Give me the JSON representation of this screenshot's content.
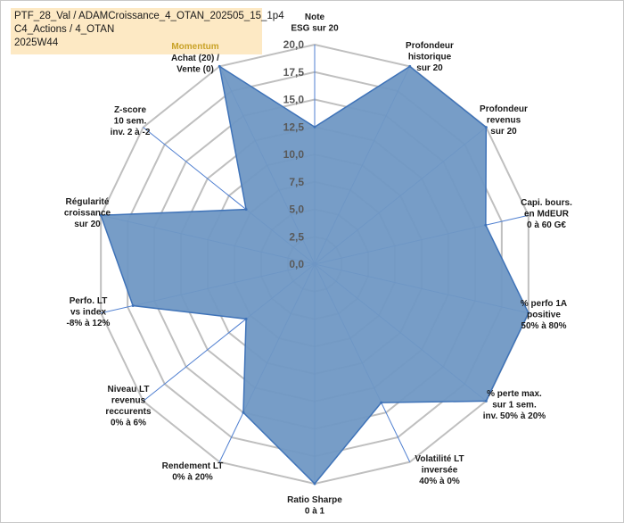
{
  "title_box": {
    "line1": "PTF_28_Val / ADAMCroissance_4_OTAN_202505_15_1p4",
    "line2": "C4_Actions / 4_OTAN",
    "line3": "2025W44"
  },
  "colors": {
    "fill": "#7098c4",
    "outline": "#3f73b8",
    "grid": "#bfbfbf",
    "spoke": "#4f7fd0",
    "title_bg": "#fde9c4",
    "extra_label": "#c9a227"
  },
  "chart_data": {
    "type": "radar",
    "rmin": 0,
    "rmax": 20,
    "ticks": [
      "0,0",
      "2,5",
      "5,0",
      "7,5",
      "10,0",
      "12,5",
      "15,0",
      "17,5",
      "20,0"
    ],
    "tick_values": [
      0,
      2.5,
      5,
      7.5,
      10,
      12.5,
      15,
      17.5,
      20
    ],
    "extra_label": "Momentum",
    "axes": [
      {
        "lines": [
          "Note",
          "ESG sur 20"
        ],
        "value": 12.5
      },
      {
        "lines": [
          "Profondeur",
          "historique",
          "sur 20"
        ],
        "value": 20
      },
      {
        "lines": [
          "Profondeur",
          "revenus",
          "sur 20"
        ],
        "value": 20
      },
      {
        "lines": [
          "Capi. bours.",
          "en MdEUR",
          "0 à 60 G€"
        ],
        "value": 16
      },
      {
        "lines": [
          "% perfo 1A",
          "positive",
          "50% à 80%"
        ],
        "value": 20
      },
      {
        "lines": [
          "% perte max.",
          "sur 1 sem.",
          "inv. 50% à 20%"
        ],
        "value": 20
      },
      {
        "lines": [
          "Volatilité LT",
          "inversée",
          "40% à 0%"
        ],
        "value": 14
      },
      {
        "lines": [
          "Ratio Sharpe",
          "0 à 1"
        ],
        "value": 20
      },
      {
        "lines": [
          "Rendement LT",
          "0% à 20%"
        ],
        "value": 15
      },
      {
        "lines": [
          "Niveau LT",
          "revenus",
          "reccurents",
          "0% à 6%"
        ],
        "value": 8
      },
      {
        "lines": [
          "Perfo. LT",
          "vs index",
          "-8% à 12%"
        ],
        "value": 17
      },
      {
        "lines": [
          "Régularité",
          "croissance",
          "sur 20"
        ],
        "value": 20
      },
      {
        "lines": [
          "Z-score",
          "10 sem.",
          "inv. 2 à -2"
        ],
        "value": 8
      },
      {
        "lines": [
          "Achat (20) /",
          "Vente (0)"
        ],
        "value": 20
      }
    ]
  }
}
